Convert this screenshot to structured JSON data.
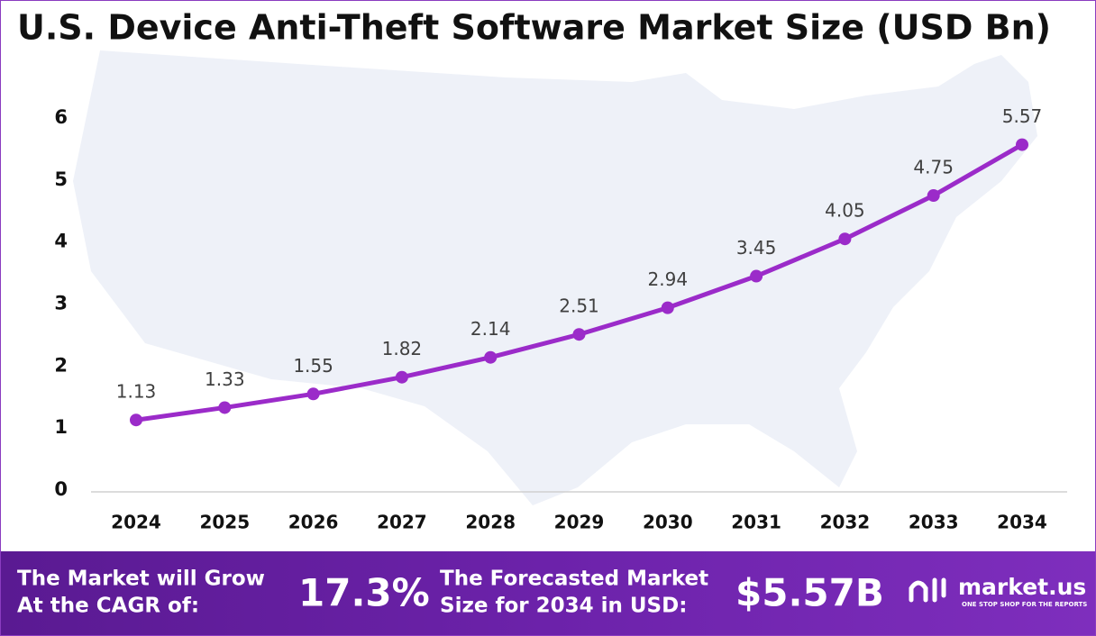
{
  "chart_data": {
    "type": "line",
    "title": "U.S. Device Anti-Theft Software Market Size (USD Bn)",
    "categories": [
      "2024",
      "2025",
      "2026",
      "2027",
      "2028",
      "2029",
      "2030",
      "2031",
      "2032",
      "2033",
      "2034"
    ],
    "values": [
      1.13,
      1.33,
      1.55,
      1.82,
      2.14,
      2.51,
      2.94,
      3.45,
      4.05,
      4.75,
      5.57
    ],
    "color": "#9b2bc9",
    "ylim": [
      0,
      6
    ],
    "yticks": [
      0,
      1,
      2,
      3,
      4,
      5,
      6
    ],
    "grid": false
  },
  "footer": {
    "cagr_text": [
      "The Market will Grow",
      "At the CAGR of:"
    ],
    "cagr_value": "17.3%",
    "forecast_text": [
      "The Forecasted Market",
      "Size for 2034 in USD:"
    ],
    "forecast_value": "$5.57B",
    "logo": "market.us",
    "tagline": "ONE STOP SHOP FOR THE REPORTS"
  }
}
